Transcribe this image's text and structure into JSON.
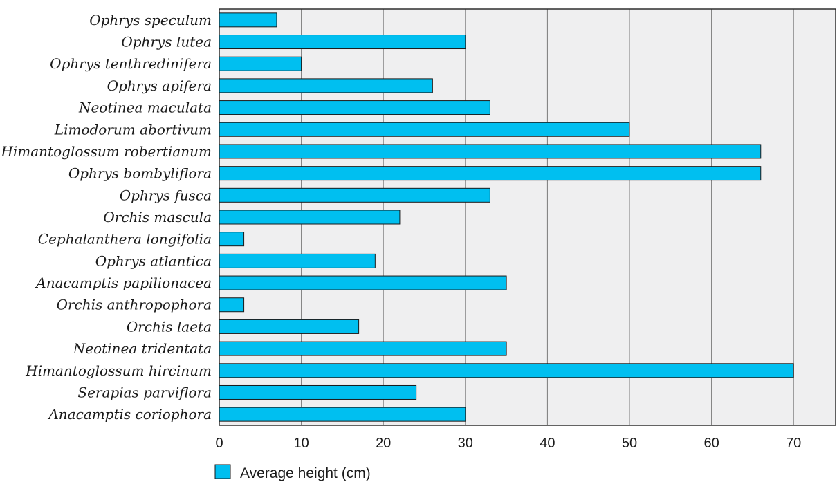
{
  "chart_data": {
    "type": "bar",
    "orientation": "horizontal",
    "categories": [
      "Ophrys speculum",
      "Ophrys lutea",
      "Ophrys tenthredinifera",
      "Ophrys apifera",
      "Neotinea maculata",
      "Limodorum abortivum",
      "Himantoglossum robertianum",
      "Ophrys bombyliflora",
      "Ophrys fusca",
      "Orchis mascula",
      "Cephalanthera longifolia",
      "Ophrys atlantica",
      "Anacamptis papilionacea",
      "Orchis anthropophora",
      "Orchis laeta",
      "Neotinea tridentata",
      "Himantoglossum hircinum",
      "Serapias parviflora",
      "Anacamptis coriophora"
    ],
    "series": [
      {
        "name": "Average height (cm)",
        "color": "#00bff0",
        "values": [
          7,
          30,
          10,
          26,
          33,
          50,
          66,
          66,
          33,
          22,
          3,
          19,
          35,
          3,
          17,
          35,
          70,
          24,
          30
        ]
      }
    ],
    "xlim": [
      0,
      75
    ],
    "xticks": [
      "0",
      "10",
      "20",
      "30",
      "40",
      "50",
      "60",
      "70"
    ],
    "grid": "vertical",
    "legend_position": "bottom-left",
    "title": "",
    "xlabel": "",
    "ylabel": ""
  }
}
